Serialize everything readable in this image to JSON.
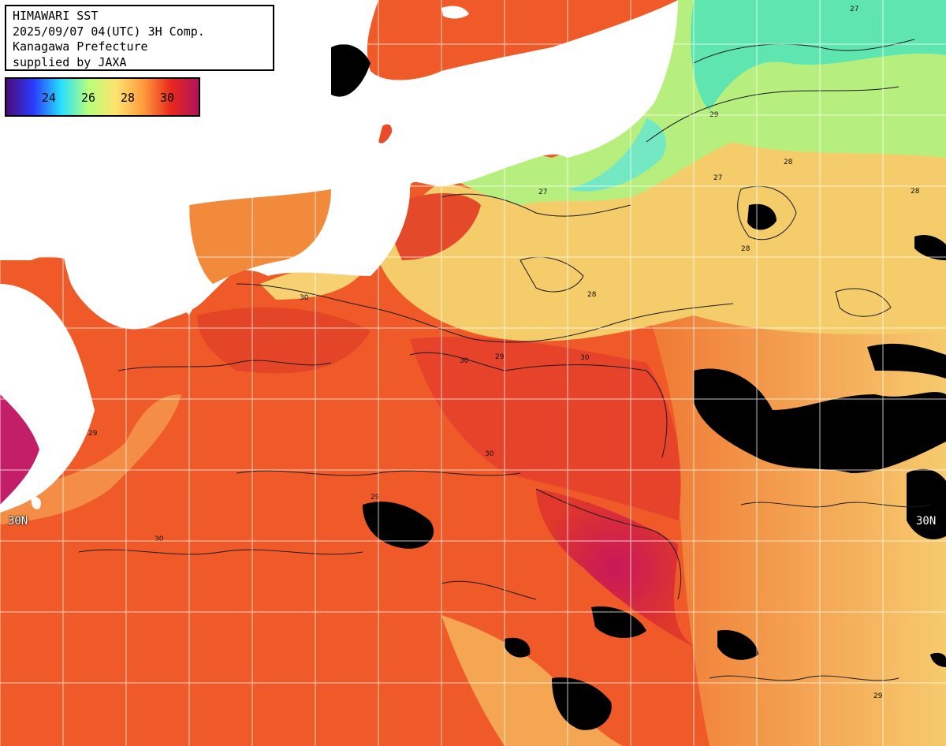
{
  "header": {
    "line1": "HIMAWARI SST",
    "line2": "2025/09/07 04(UTC) 3H Comp.",
    "line3": "Kanagawa Prefecture",
    "line4": "supplied by JAXA"
  },
  "legend": {
    "ticks": [
      "24",
      "26",
      "28",
      "30"
    ],
    "colors": [
      "#4b0a7a",
      "#2b3cff",
      "#26e0ff",
      "#b8ff7a",
      "#ffe36e",
      "#ff9a3c",
      "#e8281c",
      "#b0125e"
    ]
  },
  "gridlines": {
    "lat_label_left": "30N",
    "lat_label_right": "30N"
  },
  "contour_labels": [
    "27",
    "28",
    "29",
    "30"
  ],
  "colors": {
    "land": "#ffffff",
    "cloud": "#000000",
    "warm": "#f2602a",
    "hot": "#e03a26",
    "cool": "#9ef090",
    "mild": "#f7c46a"
  }
}
